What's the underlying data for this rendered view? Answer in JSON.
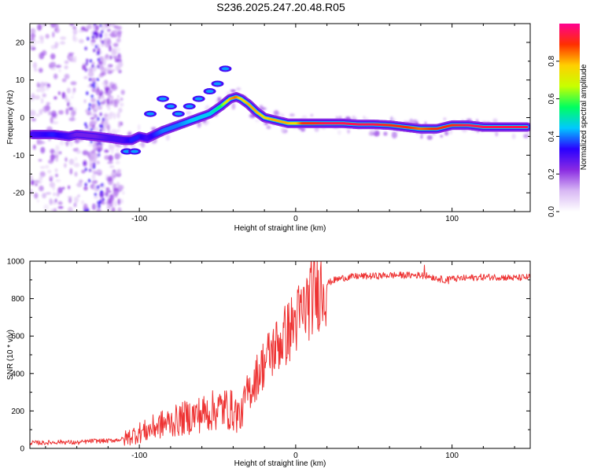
{
  "title": "S236.2025.247.20.48.R05",
  "colorbar": {
    "label": "Normalized spectral amplitude",
    "ticks": [
      0.0,
      0.2,
      0.4,
      0.6,
      0.8
    ],
    "tick_labels": [
      "0.0",
      "0.2",
      "0.4",
      "0.6",
      "0.8"
    ],
    "range": [
      0,
      1
    ],
    "colormap": [
      "#ffffff",
      "#d8b8f4",
      "#8a2be2",
      "#2a00ff",
      "#00c8ff",
      "#00ff60",
      "#c8ff00",
      "#ffd000",
      "#ff3000",
      "#ff0090"
    ]
  },
  "chart_data": [
    {
      "type": "heatmap",
      "xlabel": "Height of straight line (km)",
      "ylabel": "Frequency (Hz)",
      "xlim": [
        -170,
        150
      ],
      "ylim": [
        -25,
        25
      ],
      "xticks": [
        -100,
        0,
        100
      ],
      "xtick_labels": [
        "-100",
        "0",
        "100"
      ],
      "yticks": [
        -20,
        -10,
        0,
        10,
        20
      ],
      "ytick_labels": [
        "-20",
        "-10",
        "0",
        "10",
        "20"
      ],
      "ridge": {
        "x": [
          -168,
          -155,
          -145,
          -140,
          -128,
          -118,
          -110,
          -105,
          -100,
          -95,
          -85,
          -75,
          -65,
          -55,
          -48,
          -42,
          -38,
          -35,
          -30,
          -25,
          -20,
          -15,
          -10,
          -5,
          0,
          5,
          10,
          20,
          30,
          40,
          50,
          60,
          70,
          80,
          90,
          95,
          100,
          110,
          120,
          130,
          140,
          148
        ],
        "y": [
          -4.5,
          -4.5,
          -5,
          -4.5,
          -5,
          -5.5,
          -6,
          -6,
          -5,
          -5.5,
          -3.5,
          -2,
          -0.5,
          1,
          3,
          5,
          5.5,
          5,
          3.5,
          1.5,
          0,
          -0.5,
          -1,
          -1.5,
          -1.5,
          -1.5,
          -1.5,
          -1.5,
          -1.5,
          -1.8,
          -1.8,
          -2,
          -2.5,
          -3,
          -3,
          -2.5,
          -2,
          -2,
          -2.5,
          -2.5,
          -2.5,
          -2.5
        ],
        "amplitude": [
          0.3,
          0.35,
          0.3,
          0.25,
          0.25,
          0.3,
          0.3,
          0.35,
          0.35,
          0.3,
          0.4,
          0.4,
          0.45,
          0.45,
          0.55,
          0.8,
          0.85,
          0.75,
          0.8,
          0.8,
          0.75,
          0.8,
          0.8,
          0.8,
          0.75,
          0.9,
          0.9,
          0.95,
          0.95,
          0.95,
          0.95,
          0.9,
          0.9,
          0.85,
          0.9,
          0.9,
          0.9,
          0.95,
          0.95,
          0.95,
          0.95,
          0.95
        ]
      },
      "secondary_features": {
        "x": [
          -108,
          -103,
          -93,
          -85,
          -80,
          -75,
          -68,
          -62,
          -55,
          -50,
          -45
        ],
        "y": [
          -9,
          -9,
          1,
          5,
          3,
          1,
          3,
          5,
          7,
          9,
          13
        ]
      }
    },
    {
      "type": "line",
      "xlabel": "Height of straight line (km)",
      "ylabel": "SNR (10 * v/v)",
      "xlim": [
        -170,
        150
      ],
      "ylim": [
        0,
        1000
      ],
      "xticks": [
        -100,
        0,
        100
      ],
      "xtick_labels": [
        "-100",
        "0",
        "100"
      ],
      "yticks": [
        0,
        200,
        400,
        600,
        800,
        1000
      ],
      "ytick_labels": [
        "0",
        "200",
        "400",
        "600",
        "800",
        "1000"
      ],
      "series": [
        {
          "name": "SNR",
          "color": "#ee3333",
          "x": [
            -170,
            -160,
            -150,
            -140,
            -130,
            -120,
            -110,
            -100,
            -95,
            -90,
            -85,
            -80,
            -75,
            -70,
            -65,
            -60,
            -55,
            -50,
            -45,
            -40,
            -35,
            -32,
            -28,
            -24,
            -20,
            -16,
            -12,
            -8,
            -4,
            0,
            4,
            8,
            12,
            16,
            20,
            25,
            30,
            40,
            50,
            60,
            70,
            80,
            85,
            90,
            95,
            100,
            110,
            120,
            130,
            140,
            150
          ],
          "values": [
            30,
            30,
            35,
            30,
            40,
            40,
            50,
            85,
            95,
            115,
            130,
            140,
            150,
            165,
            175,
            185,
            195,
            210,
            215,
            200,
            170,
            280,
            330,
            400,
            460,
            510,
            550,
            590,
            630,
            680,
            720,
            780,
            830,
            860,
            880,
            900,
            910,
            920,
            920,
            925,
            925,
            925,
            920,
            910,
            900,
            905,
            910,
            915,
            915,
            910,
            915
          ]
        }
      ]
    }
  ]
}
